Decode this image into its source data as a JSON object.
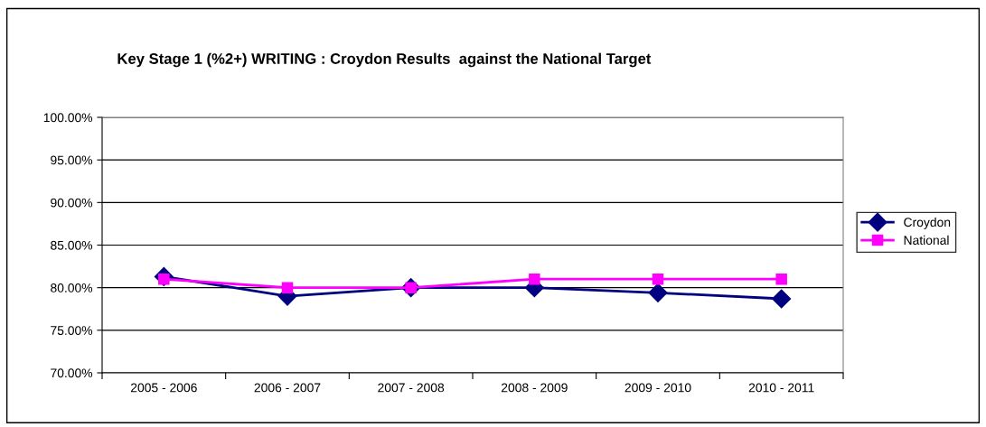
{
  "chart_data": {
    "type": "line",
    "title": "Key Stage 1 (%2+) WRITING : Croydon Results  against the National Target",
    "categories": [
      "2005 - 2006",
      "2006 - 2007",
      "2007 - 2008",
      "2008 - 2009",
      "2009 - 2010",
      "2010 - 2011"
    ],
    "series": [
      {
        "name": "Croydon",
        "color": "#000080",
        "marker": "diamond",
        "values": [
          81.3,
          79.0,
          80.0,
          80.0,
          79.4,
          78.7
        ]
      },
      {
        "name": "National",
        "color": "#ff00ff",
        "marker": "square",
        "values": [
          81.0,
          80.0,
          80.0,
          81.0,
          81.0,
          81.0
        ]
      }
    ],
    "ylim": [
      70,
      100
    ],
    "yticks": [
      {
        "value": 70,
        "label": "70.00%"
      },
      {
        "value": 75,
        "label": "75.00%"
      },
      {
        "value": 80,
        "label": "80.00%"
      },
      {
        "value": 85,
        "label": "85.00%"
      },
      {
        "value": 90,
        "label": "90.00%"
      },
      {
        "value": 95,
        "label": "95.00%"
      },
      {
        "value": 100,
        "label": "100.00%"
      }
    ],
    "grid": "y",
    "legend": "right",
    "line_style": "solid"
  }
}
